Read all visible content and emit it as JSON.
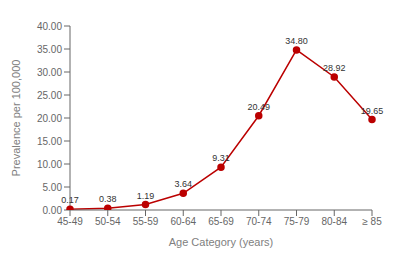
{
  "chart_data": {
    "type": "line",
    "categories": [
      "45-49",
      "50-54",
      "55-59",
      "60-64",
      "65-69",
      "70-74",
      "75-79",
      "80-84",
      "≥ 85"
    ],
    "values": [
      0.17,
      0.38,
      1.19,
      3.64,
      9.31,
      20.49,
      34.8,
      28.92,
      19.65
    ],
    "value_labels": [
      "0.17",
      "0.38",
      "1.19",
      "3.64",
      "9.31",
      "20.49",
      "34.80",
      "28.92",
      "19.65"
    ],
    "data_labels": true,
    "color": "#bb0000",
    "marker": "circle",
    "xlabel": "Age Category (years)",
    "ylabel": "Prevalence per 100,000",
    "ylim": [
      0,
      40
    ],
    "yticks": [
      {
        "value": 0,
        "label": "0.00"
      },
      {
        "value": 5,
        "label": "5.00"
      },
      {
        "value": 10,
        "label": "10.00"
      },
      {
        "value": 15,
        "label": "15.00"
      },
      {
        "value": 20,
        "label": "20.00"
      },
      {
        "value": 25,
        "label": "25.00"
      },
      {
        "value": 30,
        "label": "30.00"
      },
      {
        "value": 35,
        "label": "35.00"
      },
      {
        "value": 40,
        "label": "40.00"
      }
    ],
    "grid": false
  }
}
